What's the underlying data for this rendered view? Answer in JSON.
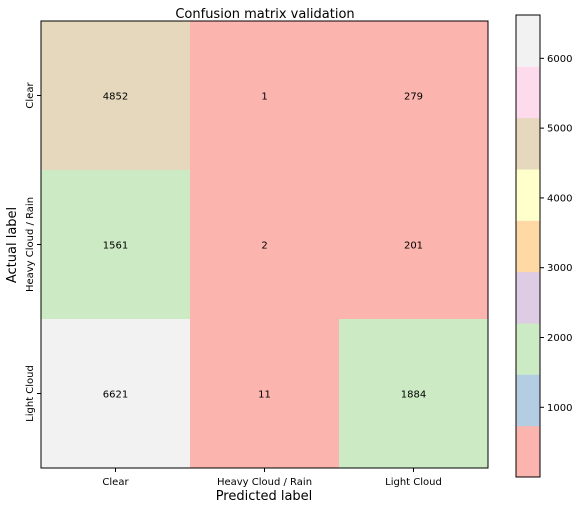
{
  "chart_data": {
    "type": "heatmap",
    "title": "Confusion matrix validation",
    "xlabel": "Predicted label",
    "ylabel": "Actual label",
    "x_categories": [
      "Clear",
      "Heavy Cloud / Rain",
      "Light Cloud"
    ],
    "y_categories": [
      "Clear",
      "Heavy Cloud / Rain",
      "Light Cloud"
    ],
    "values": [
      [
        4852,
        1,
        279
      ],
      [
        1561,
        2,
        201
      ],
      [
        6621,
        11,
        1884
      ]
    ],
    "colormap": "Pastel1",
    "colormap_colors": [
      "#fbb4ae",
      "#b3cde3",
      "#ccebc5",
      "#decbe4",
      "#fed9a6",
      "#ffffcc",
      "#e5d8bd",
      "#fddaec",
      "#f2f2f2"
    ],
    "vmin": 1,
    "vmax": 6621,
    "colorbar_ticks": [
      1000,
      2000,
      3000,
      4000,
      5000,
      6000
    ],
    "colorbar_tick_labels": [
      "1000",
      "2000",
      "3000",
      "4000",
      "5000",
      "6000"
    ],
    "grid": false
  }
}
